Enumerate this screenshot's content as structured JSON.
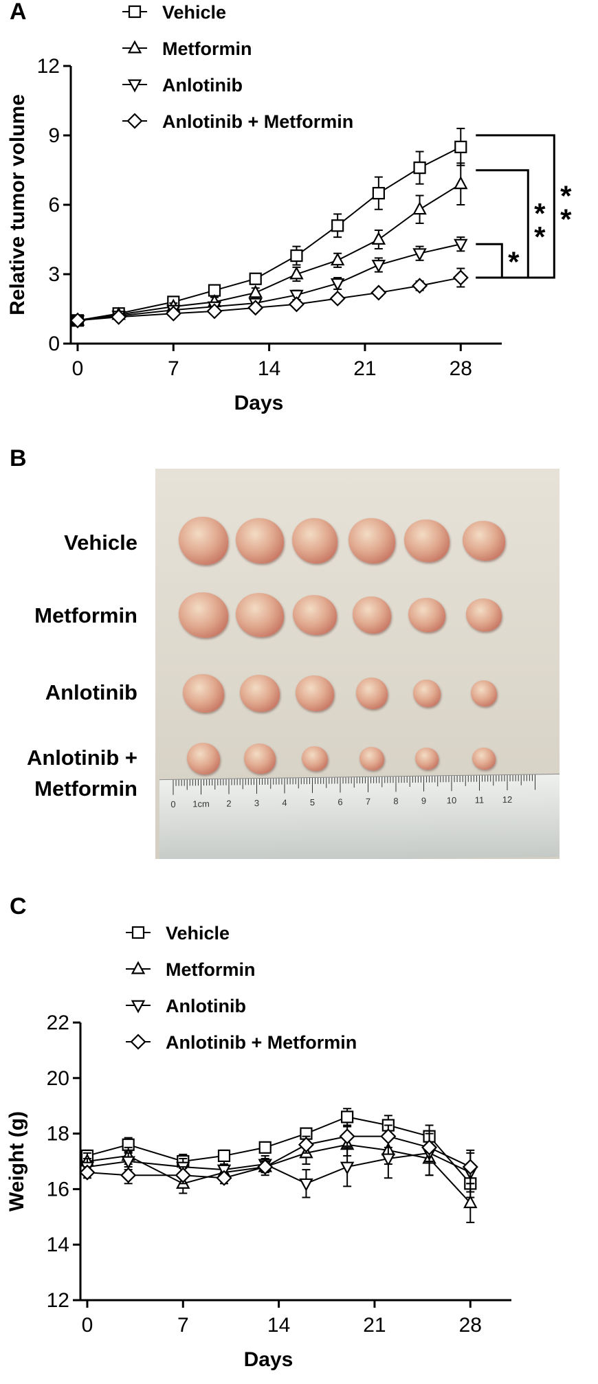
{
  "panels": {
    "a": "A",
    "b": "B",
    "c": "C"
  },
  "chart_data": [
    {
      "type": "line",
      "xlabel": "Days",
      "ylabel": "Relative tumor volume",
      "xlim": [
        -0.5,
        31
      ],
      "ylim": [
        0,
        12
      ],
      "xticks": [
        0,
        7,
        14,
        21,
        28
      ],
      "yticks": [
        0,
        3,
        6,
        9,
        12
      ],
      "x": [
        0,
        3,
        7,
        10,
        13,
        16,
        19,
        22,
        25,
        28
      ],
      "legend": "top-left",
      "series": [
        {
          "name": "Vehicle",
          "marker": "square",
          "values": [
            1.0,
            1.3,
            1.8,
            2.3,
            2.8,
            3.8,
            5.1,
            6.5,
            7.6,
            8.5
          ],
          "errors": [
            0.1,
            0.1,
            0.15,
            0.2,
            0.2,
            0.4,
            0.5,
            0.7,
            0.7,
            0.8
          ]
        },
        {
          "name": "Metformin",
          "marker": "triangle-up",
          "values": [
            1.0,
            1.25,
            1.6,
            1.8,
            2.2,
            3.0,
            3.6,
            4.5,
            5.8,
            6.9
          ],
          "errors": [
            0.1,
            0.1,
            0.15,
            0.2,
            0.2,
            0.3,
            0.3,
            0.4,
            0.6,
            0.9
          ]
        },
        {
          "name": "Anlotinib",
          "marker": "triangle-down",
          "values": [
            1.0,
            1.2,
            1.45,
            1.6,
            1.75,
            2.1,
            2.6,
            3.4,
            3.9,
            4.3
          ],
          "errors": [
            0.1,
            0.1,
            0.1,
            0.1,
            0.15,
            0.2,
            0.25,
            0.3,
            0.3,
            0.3
          ]
        },
        {
          "name": "Anlotinib + Metformin",
          "marker": "diamond",
          "values": [
            1.0,
            1.15,
            1.3,
            1.4,
            1.55,
            1.7,
            1.95,
            2.2,
            2.5,
            2.85
          ],
          "errors": [
            0.1,
            0.1,
            0.1,
            0.1,
            0.1,
            0.1,
            0.1,
            0.15,
            0.2,
            0.4
          ]
        }
      ],
      "significance": [
        "*",
        "**",
        "**"
      ]
    },
    {
      "type": "line",
      "xlabel": "Days",
      "ylabel": "Weight (g)",
      "xlim": [
        -0.5,
        31
      ],
      "ylim": [
        12,
        22
      ],
      "xticks": [
        0,
        7,
        14,
        21,
        28
      ],
      "yticks": [
        12,
        14,
        16,
        18,
        20,
        22
      ],
      "x": [
        0,
        3,
        7,
        10,
        13,
        16,
        19,
        22,
        25,
        28
      ],
      "legend": "top-left",
      "series": [
        {
          "name": "Vehicle",
          "marker": "square",
          "values": [
            17.2,
            17.6,
            17.0,
            17.2,
            17.5,
            18.0,
            18.6,
            18.3,
            17.9,
            16.2
          ],
          "errors": [
            0.2,
            0.25,
            0.25,
            0.2,
            0.15,
            0.2,
            0.3,
            0.35,
            0.4,
            0.5
          ]
        },
        {
          "name": "Metformin",
          "marker": "triangle-up",
          "values": [
            17.0,
            17.2,
            16.2,
            16.6,
            16.8,
            17.3,
            17.6,
            17.4,
            17.1,
            15.5
          ],
          "errors": [
            0.3,
            0.3,
            0.35,
            0.3,
            0.3,
            0.4,
            0.4,
            0.5,
            0.6,
            0.7
          ]
        },
        {
          "name": "Anlotinib",
          "marker": "triangle-down",
          "values": [
            16.8,
            17.0,
            16.8,
            16.7,
            16.9,
            16.2,
            16.8,
            17.1,
            17.3,
            16.6
          ],
          "errors": [
            0.3,
            0.3,
            0.3,
            0.3,
            0.3,
            0.5,
            0.7,
            0.7,
            0.8,
            0.7
          ]
        },
        {
          "name": "Anlotinib + Metformin",
          "marker": "diamond",
          "values": [
            16.6,
            16.5,
            16.5,
            16.4,
            16.8,
            17.6,
            17.9,
            17.9,
            17.5,
            16.8
          ],
          "errors": [
            0.2,
            0.3,
            0.3,
            0.2,
            0.2,
            0.3,
            0.35,
            0.4,
            0.5,
            0.6
          ]
        }
      ]
    }
  ],
  "photo": {
    "row_labels": [
      "Vehicle",
      "Metformin",
      "Anlotinib",
      "Anlotinib +",
      "Metformin"
    ],
    "ruler_labels": [
      "0",
      "1cm",
      "2",
      "3",
      "4",
      "5",
      "6",
      "7",
      "8",
      "9",
      "10",
      "11",
      "12"
    ]
  }
}
